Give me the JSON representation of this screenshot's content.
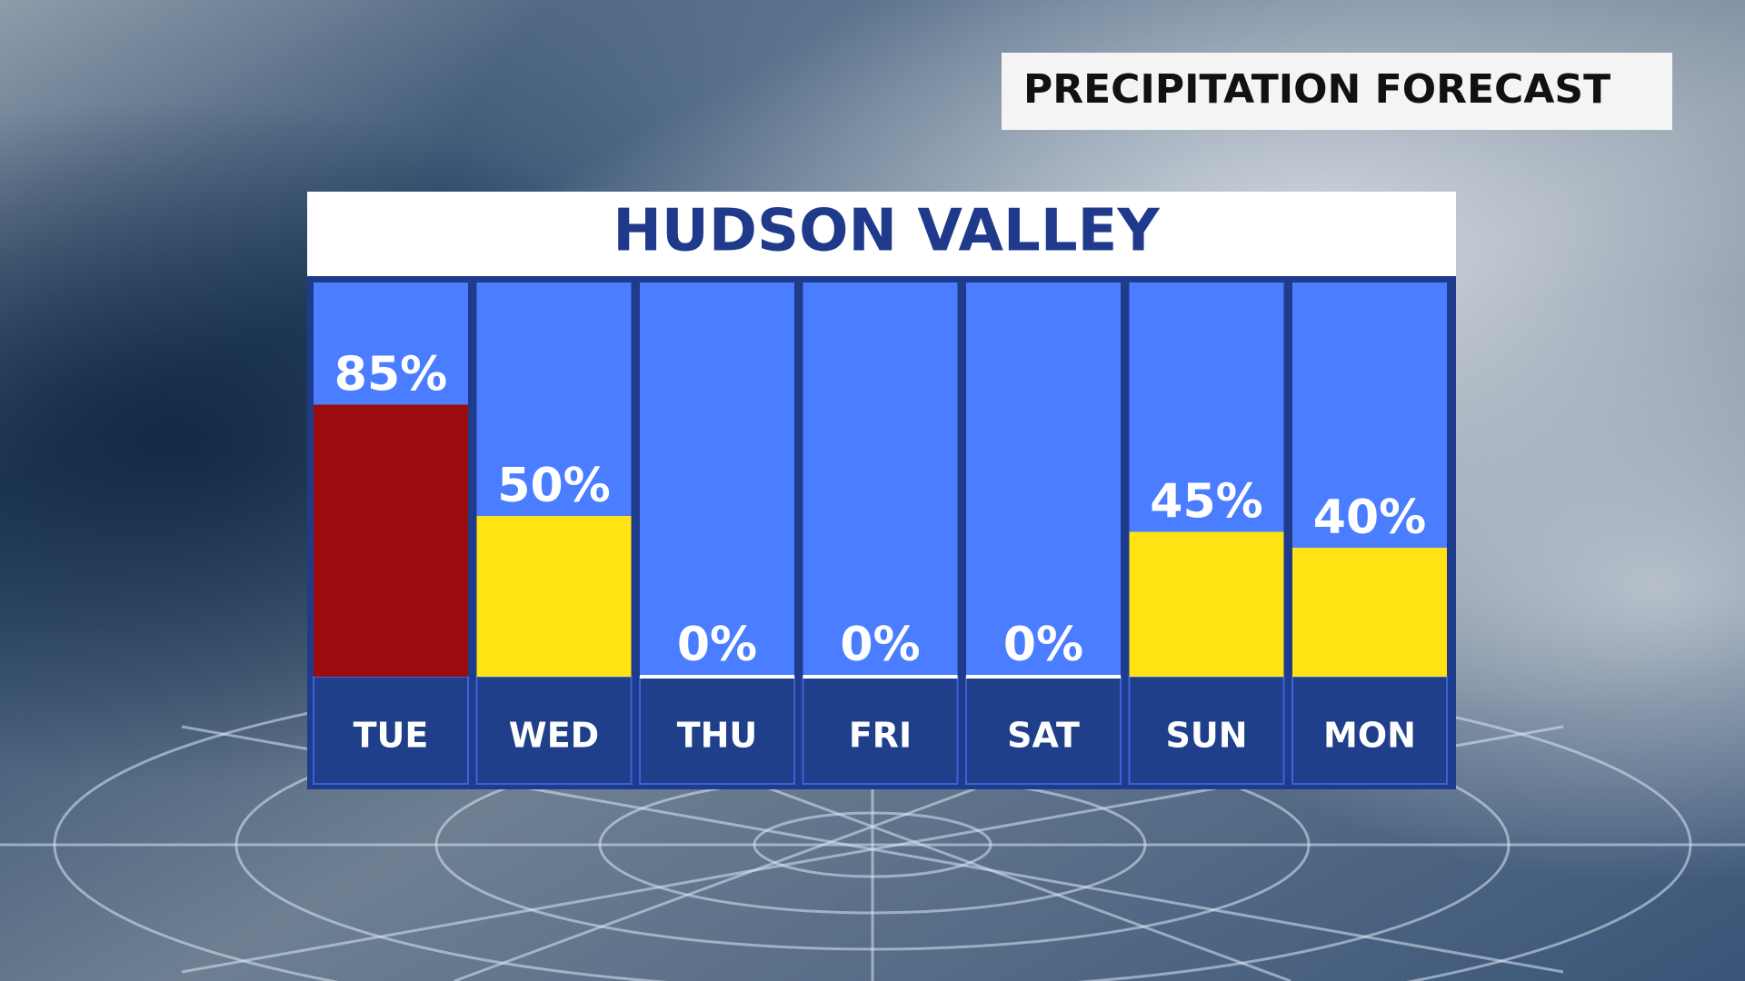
{
  "header": {
    "title": "PRECIPITATION FORECAST"
  },
  "chart_data": {
    "type": "bar",
    "title": "HUDSON VALLEY",
    "categories": [
      "TUE",
      "WED",
      "THU",
      "FRI",
      "SAT",
      "SUN",
      "MON"
    ],
    "values": [
      85,
      50,
      0,
      0,
      0,
      45,
      40
    ],
    "value_labels": [
      "85%",
      "50%",
      "0%",
      "0%",
      "0%",
      "45%",
      "40%"
    ],
    "colors": [
      "#9b0c0e",
      "#ffe312",
      "#ffffff",
      "#ffffff",
      "#ffffff",
      "#ffe312",
      "#ffe312"
    ],
    "ylim": [
      0,
      100
    ]
  }
}
